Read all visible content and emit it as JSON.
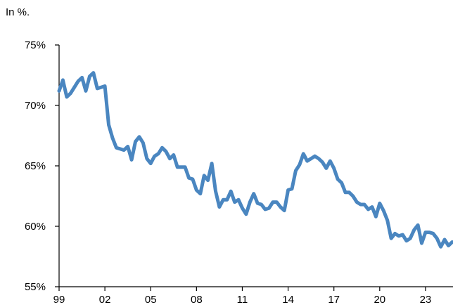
{
  "chart_data": {
    "type": "line",
    "unit_note": "In %.",
    "title": "",
    "xlabel": "",
    "ylabel": "",
    "x_ticks": [
      "99",
      "02",
      "05",
      "08",
      "11",
      "14",
      "17",
      "20",
      "23"
    ],
    "y_ticks": [
      "55%",
      "60%",
      "65%",
      "70%",
      "75%"
    ],
    "xlim": [
      1999.0,
      2024.8
    ],
    "ylim": [
      55,
      75
    ],
    "grid": false,
    "legend": "none",
    "line_color": "#4a86c0",
    "series": [
      {
        "x": [
          1999.0,
          1999.25,
          1999.5,
          1999.75,
          2000.0,
          2000.25,
          2000.5,
          2000.75,
          2001.0,
          2001.25,
          2001.5,
          2001.75,
          2002.0,
          2002.25,
          2002.5,
          2002.75,
          2003.0,
          2003.25,
          2003.5,
          2003.75,
          2004.0,
          2004.25,
          2004.5,
          2004.75,
          2005.0,
          2005.25,
          2005.5,
          2005.75,
          2006.0,
          2006.25,
          2006.5,
          2006.75,
          2007.0,
          2007.25,
          2007.5,
          2007.75,
          2008.0,
          2008.25,
          2008.5,
          2008.75,
          2009.0,
          2009.25,
          2009.5,
          2009.75,
          2010.0,
          2010.25,
          2010.5,
          2010.75,
          2011.0,
          2011.25,
          2011.5,
          2011.75,
          2012.0,
          2012.25,
          2012.5,
          2012.75,
          2013.0,
          2013.25,
          2013.5,
          2013.75,
          2014.0,
          2014.25,
          2014.5,
          2014.75,
          2015.0,
          2015.25,
          2015.5,
          2015.75,
          2016.0,
          2016.25,
          2016.5,
          2016.75,
          2017.0,
          2017.25,
          2017.5,
          2017.75,
          2018.0,
          2018.25,
          2018.5,
          2018.75,
          2019.0,
          2019.25,
          2019.5,
          2019.75,
          2020.0,
          2020.25,
          2020.5,
          2020.75,
          2021.0,
          2021.25,
          2021.5,
          2021.75,
          2022.0,
          2022.25,
          2022.5,
          2022.75,
          2023.0,
          2023.25,
          2023.5,
          2023.75,
          2024.0,
          2024.25,
          2024.5,
          2024.75
        ],
        "values": [
          71.2,
          72.1,
          70.7,
          71.0,
          71.5,
          72.0,
          72.3,
          71.2,
          72.4,
          72.7,
          71.4,
          71.5,
          71.6,
          68.4,
          67.3,
          66.5,
          66.4,
          66.3,
          66.6,
          65.5,
          67.0,
          67.4,
          66.9,
          65.6,
          65.2,
          65.8,
          66.0,
          66.5,
          66.2,
          65.6,
          65.9,
          64.9,
          64.9,
          64.9,
          64.0,
          63.9,
          63.0,
          62.7,
          64.2,
          63.8,
          65.2,
          62.9,
          61.6,
          62.2,
          62.2,
          62.9,
          62.0,
          62.2,
          61.5,
          61.0,
          62.0,
          62.7,
          61.9,
          61.8,
          61.4,
          61.5,
          62.0,
          62.0,
          61.6,
          61.3,
          63.0,
          63.1,
          64.6,
          65.1,
          66.0,
          65.4,
          65.6,
          65.8,
          65.6,
          65.3,
          64.8,
          65.4,
          64.8,
          63.9,
          63.6,
          62.8,
          62.8,
          62.5,
          62.0,
          61.8,
          61.8,
          61.4,
          61.6,
          60.8,
          61.9,
          61.3,
          60.5,
          59.0,
          59.4,
          59.2,
          59.3,
          58.8,
          59.0,
          59.7,
          60.1,
          58.6,
          59.5,
          59.5,
          59.4,
          59.0,
          58.3,
          58.9,
          58.4,
          58.7
        ]
      }
    ]
  }
}
